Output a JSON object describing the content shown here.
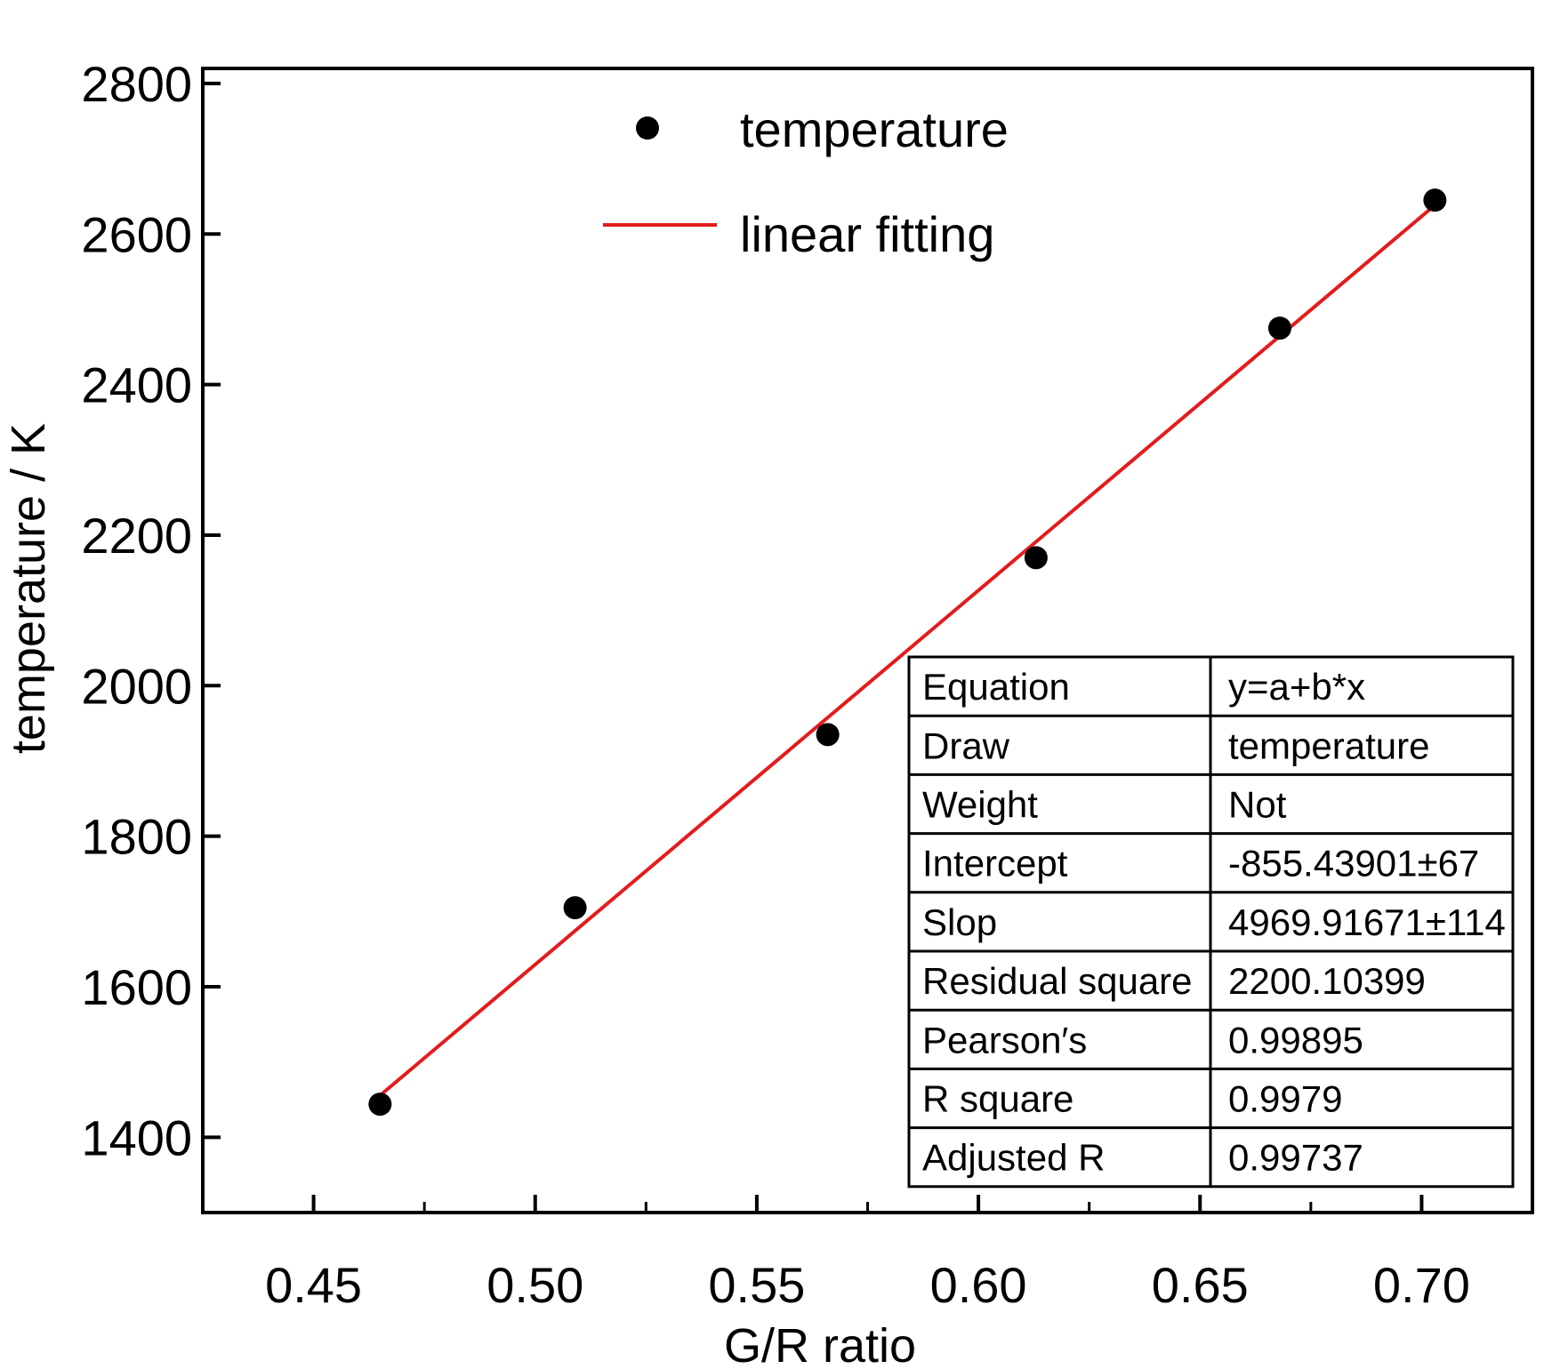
{
  "chart_data": {
    "type": "scatter",
    "xlabel": "G/R ratio",
    "ylabel": "temperature / K",
    "xlim": [
      0.425,
      0.725
    ],
    "ylim": [
      1300,
      2820
    ],
    "xticks": [
      0.45,
      0.5,
      0.55,
      0.6,
      0.65,
      0.7
    ],
    "xtick_labels": [
      "0.45",
      "0.50",
      "0.55",
      "0.60",
      "0.65",
      "0.70"
    ],
    "yticks": [
      1400,
      1600,
      1800,
      2000,
      2200,
      2400,
      2600,
      2800
    ],
    "ytick_labels": [
      "1400",
      "1600",
      "1800",
      "2000",
      "2200",
      "2400",
      "2600",
      "2800"
    ],
    "grid": false,
    "legend_position": "top-center",
    "series": [
      {
        "name": "temperature",
        "kind": "scatter",
        "color": "#000000",
        "x": [
          0.465,
          0.509,
          0.566,
          0.613,
          0.668,
          0.703
        ],
        "y": [
          1444,
          1705,
          1935,
          2170,
          2475,
          2645
        ]
      },
      {
        "name": "linear fitting",
        "kind": "line",
        "color": "#e41b1b",
        "intercept": -855.43901,
        "slope": 4969.91671,
        "x_range": [
          0.465,
          0.703
        ]
      }
    ],
    "stats_table": [
      {
        "label": "Equation",
        "value": "y=a+b*x"
      },
      {
        "label": "Draw",
        "value": "temperature"
      },
      {
        "label": "Weight",
        "value": "Not"
      },
      {
        "label": "Intercept",
        "value": "-855.43901±67"
      },
      {
        "label": "Slop",
        "value": "4969.91671±114"
      },
      {
        "label": "Residual square",
        "value": "2200.10399"
      },
      {
        "label": "Pearson′s",
        "value": "0.99895"
      },
      {
        "label": "R square",
        "value": "0.9979"
      },
      {
        "label": "Adjusted R",
        "value": "0.99737"
      }
    ]
  }
}
